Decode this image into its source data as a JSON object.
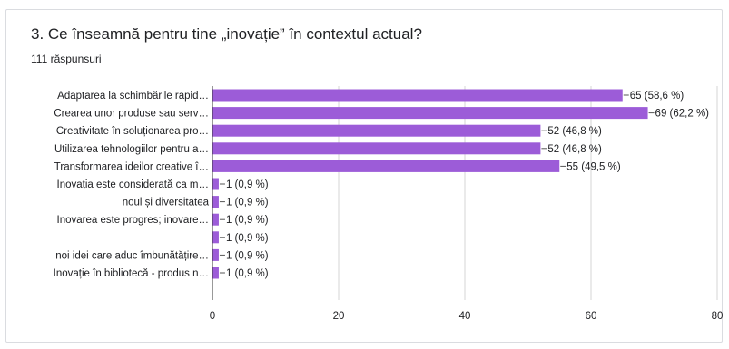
{
  "question": {
    "title": "3.  Ce înseamnă pentru tine „inovație” în contextul actual?",
    "responses": "111 răspunsuri"
  },
  "colors": {
    "bar": "#9c5cd8",
    "grid": "#d6d6d6",
    "axis": "#333333",
    "card_border": "#dadce0"
  },
  "chart_data": {
    "type": "bar",
    "orientation": "horizontal",
    "title": "3.  Ce înseamnă pentru tine „inovație” în contextul actual?",
    "categories": [
      "Adaptarea la schimbările rapid…",
      "Crearea unor produse sau serv…",
      "Creativitate în soluționarea pro…",
      "Utilizarea tehnologiilor pentru a…",
      "Transformarea ideilor creative î…",
      "Inovația este considerată ca m…",
      "noul și diversitatea",
      "Inovarea este progres; inovare…",
      "",
      "noi idei care aduc îmbunătățire…",
      "Inovație în bibliotecă - produs n…"
    ],
    "values": [
      65,
      69,
      52,
      52,
      55,
      1,
      1,
      1,
      1,
      1,
      1
    ],
    "data_labels": [
      "65 (58,6 %)",
      "69 (62,2 %)",
      "52 (46,8 %)",
      "52 (46,8 %)",
      "55 (49,5 %)",
      "1 (0,9 %)",
      "1 (0,9 %)",
      "1 (0,9 %)",
      "1 (0,9 %)",
      "1 (0,9 %)",
      "1 (0,9 %)"
    ],
    "xlim": [
      0,
      80
    ],
    "xticks": [
      0,
      20,
      40,
      60,
      80
    ],
    "grid": true,
    "legend": "none"
  }
}
